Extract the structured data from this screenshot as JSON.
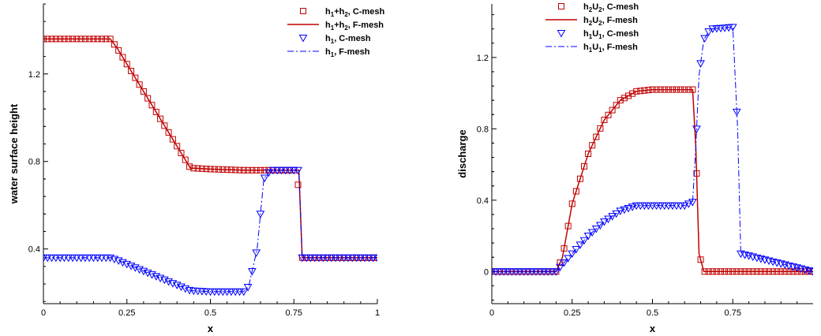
{
  "chart_data": [
    {
      "type": "line",
      "title": "",
      "xlabel": "x",
      "ylabel": "water surface height",
      "xlim": [
        0,
        1
      ],
      "ylim": [
        0.15,
        1.52
      ],
      "xticks": [
        "0",
        "0.25",
        "0.5",
        "0.75",
        "1"
      ],
      "xtick_values": [
        0,
        0.25,
        0.5,
        0.75,
        1
      ],
      "yticks": [
        "0.4",
        "0.8",
        "1.2"
      ],
      "ytick_values": [
        0.4,
        0.8,
        1.2
      ],
      "grid": false,
      "legend_position": "top-right",
      "legend": [
        {
          "base": "h",
          "sub": "1",
          "mid": "+h",
          "sub2": "2",
          "tail": ", C-mesh",
          "style": "square-marker",
          "color": "#c00000"
        },
        {
          "base": "h",
          "sub": "1",
          "mid": "+h",
          "sub2": "2",
          "tail": ", F-mesh",
          "style": "solid-line",
          "color": "#c00000"
        },
        {
          "base": "h",
          "sub": "1",
          "mid": "",
          "sub2": "",
          "tail": ", C-mesh",
          "style": "triangle-marker",
          "color": "#0000ff"
        },
        {
          "base": "h",
          "sub": "1",
          "mid": "",
          "sub2": "",
          "tail": ", F-mesh",
          "style": "dashdot-line",
          "color": "#0000ff"
        }
      ],
      "series": [
        {
          "key": "s1",
          "style": "square-marker",
          "color": "#c00000",
          "x": [
            0,
            0.2,
            0.22,
            0.44,
            0.5,
            0.6,
            0.76,
            0.775,
            1.0
          ],
          "y": [
            1.36,
            1.36,
            1.32,
            0.77,
            0.765,
            0.76,
            0.76,
            0.36,
            0.36
          ]
        },
        {
          "key": "s2",
          "style": "solid-line",
          "color": "#c00000",
          "x": [
            0,
            0.2,
            0.22,
            0.44,
            0.5,
            0.6,
            0.765,
            0.775,
            1.0
          ],
          "y": [
            1.36,
            1.36,
            1.32,
            0.77,
            0.765,
            0.76,
            0.76,
            0.36,
            0.36
          ]
        },
        {
          "key": "s3",
          "style": "triangle-marker",
          "color": "#0000ff",
          "x": [
            0,
            0.2,
            0.22,
            0.44,
            0.5,
            0.6,
            0.615,
            0.64,
            0.66,
            0.68,
            0.765,
            0.775,
            1.0
          ],
          "y": [
            0.36,
            0.36,
            0.35,
            0.21,
            0.205,
            0.205,
            0.23,
            0.4,
            0.72,
            0.76,
            0.76,
            0.36,
            0.36
          ]
        },
        {
          "key": "s4",
          "style": "dashdot-line",
          "color": "#0000ff",
          "x": [
            0,
            0.2,
            0.22,
            0.44,
            0.5,
            0.6,
            0.615,
            0.64,
            0.66,
            0.68,
            0.765,
            0.775,
            1.0
          ],
          "y": [
            0.36,
            0.36,
            0.35,
            0.21,
            0.205,
            0.205,
            0.23,
            0.4,
            0.72,
            0.76,
            0.76,
            0.36,
            0.36
          ]
        }
      ]
    },
    {
      "type": "line",
      "title": "",
      "xlabel": "x",
      "ylabel": "discharge",
      "xlim": [
        0,
        1
      ],
      "ylim": [
        -0.18,
        1.5
      ],
      "xticks": [
        "0",
        "0.25",
        "0.5",
        "0.75"
      ],
      "xtick_values": [
        0,
        0.25,
        0.5,
        0.75
      ],
      "yticks": [
        "0",
        "0.4",
        "0.8",
        "1.2"
      ],
      "ytick_values": [
        0,
        0.4,
        0.8,
        1.2
      ],
      "grid": false,
      "legend_position": "top-center",
      "legend": [
        {
          "base": "h",
          "sub": "2",
          "mid": "U",
          "sub2": "2",
          "tail": ", C-mesh",
          "style": "square-marker",
          "color": "#c00000"
        },
        {
          "base": "h",
          "sub": "2",
          "mid": "U",
          "sub2": "2",
          "tail": ", F-mesh",
          "style": "solid-line",
          "color": "#c00000"
        },
        {
          "base": "h",
          "sub": "1",
          "mid": "U",
          "sub2": "1",
          "tail": ", C-mesh",
          "style": "triangle-marker",
          "color": "#0000ff"
        },
        {
          "base": "h",
          "sub": "1",
          "mid": "U",
          "sub2": "1",
          "tail": ", F-mesh",
          "style": "dashdot-line",
          "color": "#0000ff"
        }
      ],
      "series": [
        {
          "key": "s1",
          "style": "square-marker",
          "color": "#c00000",
          "x": [
            0,
            0.2,
            0.22,
            0.25,
            0.3,
            0.35,
            0.4,
            0.45,
            0.5,
            0.6,
            0.625,
            0.635,
            0.645,
            0.66,
            0.68,
            1.0
          ],
          "y": [
            0,
            0,
            0.08,
            0.38,
            0.66,
            0.85,
            0.96,
            1.01,
            1.02,
            1.02,
            1.02,
            0.7,
            0.1,
            0.0,
            0,
            0
          ]
        },
        {
          "key": "s2",
          "style": "solid-line",
          "color": "#c00000",
          "x": [
            0,
            0.2,
            0.22,
            0.25,
            0.3,
            0.35,
            0.4,
            0.45,
            0.5,
            0.6,
            0.625,
            0.635,
            0.645,
            0.66,
            0.68,
            1.0
          ],
          "y": [
            0,
            0,
            0.08,
            0.38,
            0.66,
            0.85,
            0.96,
            1.01,
            1.02,
            1.02,
            1.02,
            0.7,
            0.1,
            0.0,
            0,
            0
          ]
        },
        {
          "key": "s3",
          "style": "triangle-marker",
          "color": "#0000ff",
          "x": [
            0,
            0.2,
            0.22,
            0.3,
            0.35,
            0.4,
            0.45,
            0.5,
            0.6,
            0.625,
            0.635,
            0.645,
            0.66,
            0.68,
            0.75,
            0.765,
            0.775,
            1.0
          ],
          "y": [
            0,
            0,
            0.04,
            0.2,
            0.28,
            0.34,
            0.37,
            0.37,
            0.37,
            0.39,
            0.7,
            1.1,
            1.3,
            1.36,
            1.37,
            0.8,
            0.1,
            0
          ]
        },
        {
          "key": "s4",
          "style": "dashdot-line",
          "color": "#0000ff",
          "x": [
            0,
            0.2,
            0.22,
            0.3,
            0.35,
            0.4,
            0.45,
            0.5,
            0.6,
            0.625,
            0.635,
            0.645,
            0.66,
            0.68,
            0.75,
            0.765,
            0.775,
            1.0
          ],
          "y": [
            0,
            0,
            0.04,
            0.2,
            0.28,
            0.34,
            0.37,
            0.37,
            0.37,
            0.39,
            0.7,
            1.1,
            1.3,
            1.36,
            1.37,
            0.8,
            0.1,
            0
          ]
        }
      ]
    }
  ]
}
